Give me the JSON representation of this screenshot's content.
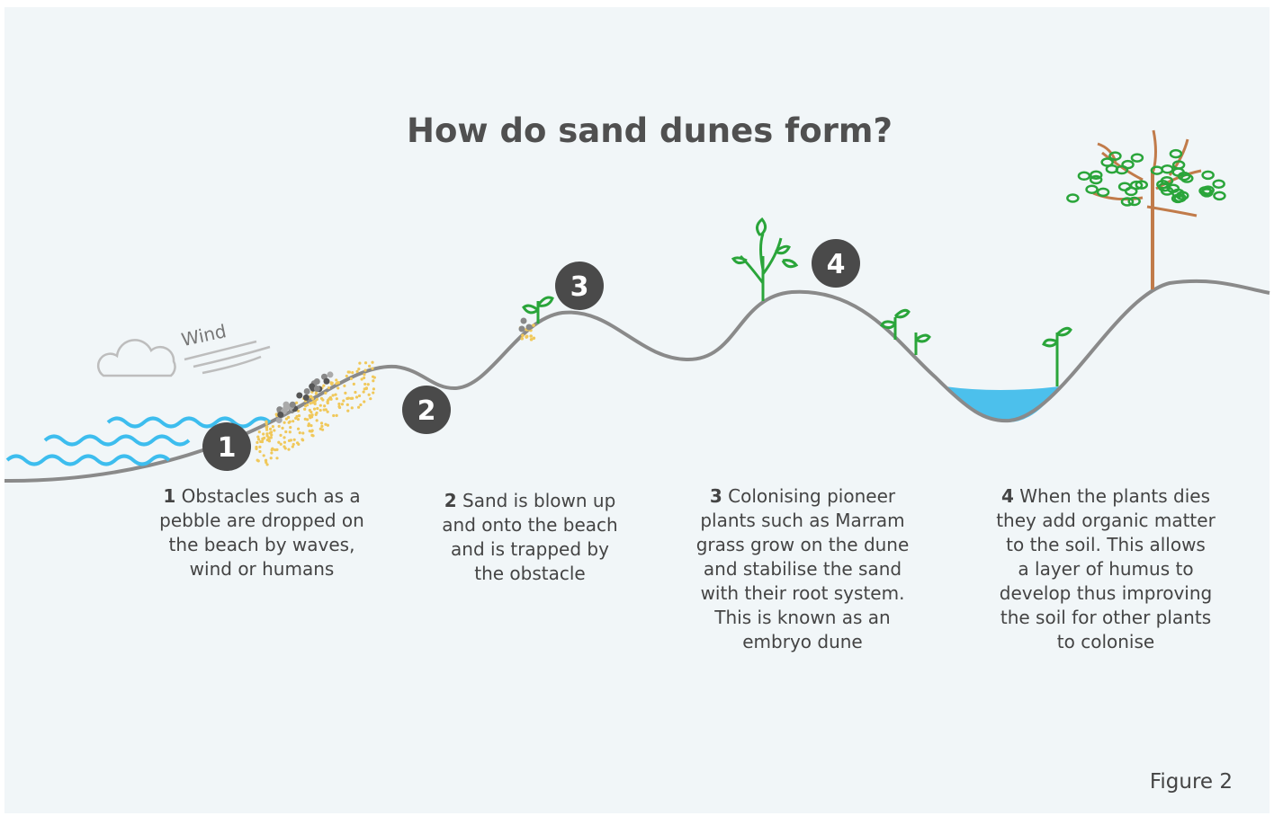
{
  "header": {
    "title": "How do sand dunes form?"
  },
  "wind_label": "Wind",
  "markers": [
    "1",
    "2",
    "3",
    "4"
  ],
  "steps": [
    {
      "number": "1",
      "lines": [
        "Obstacles such as a",
        "pebble are dropped on",
        "the beach by waves,",
        "wind or humans"
      ]
    },
    {
      "number": "2",
      "lines": [
        "Sand is blown up",
        "and onto the beach",
        "and is trapped by",
        "the obstacle"
      ]
    },
    {
      "number": "3",
      "lines": [
        "Colonising pioneer",
        "plants such as Marram",
        "grass grow on the dune",
        "and stabilise the sand",
        "with their root system.",
        "This is known as an",
        "embryo dune"
      ]
    },
    {
      "number": "4",
      "lines": [
        "When the plants dies",
        "they add organic matter",
        "to the soil. This allows",
        "a layer of humus to",
        "develop thus improving",
        "the soil for other plants",
        "to colonise"
      ]
    }
  ],
  "figure_label": "Figure 2"
}
